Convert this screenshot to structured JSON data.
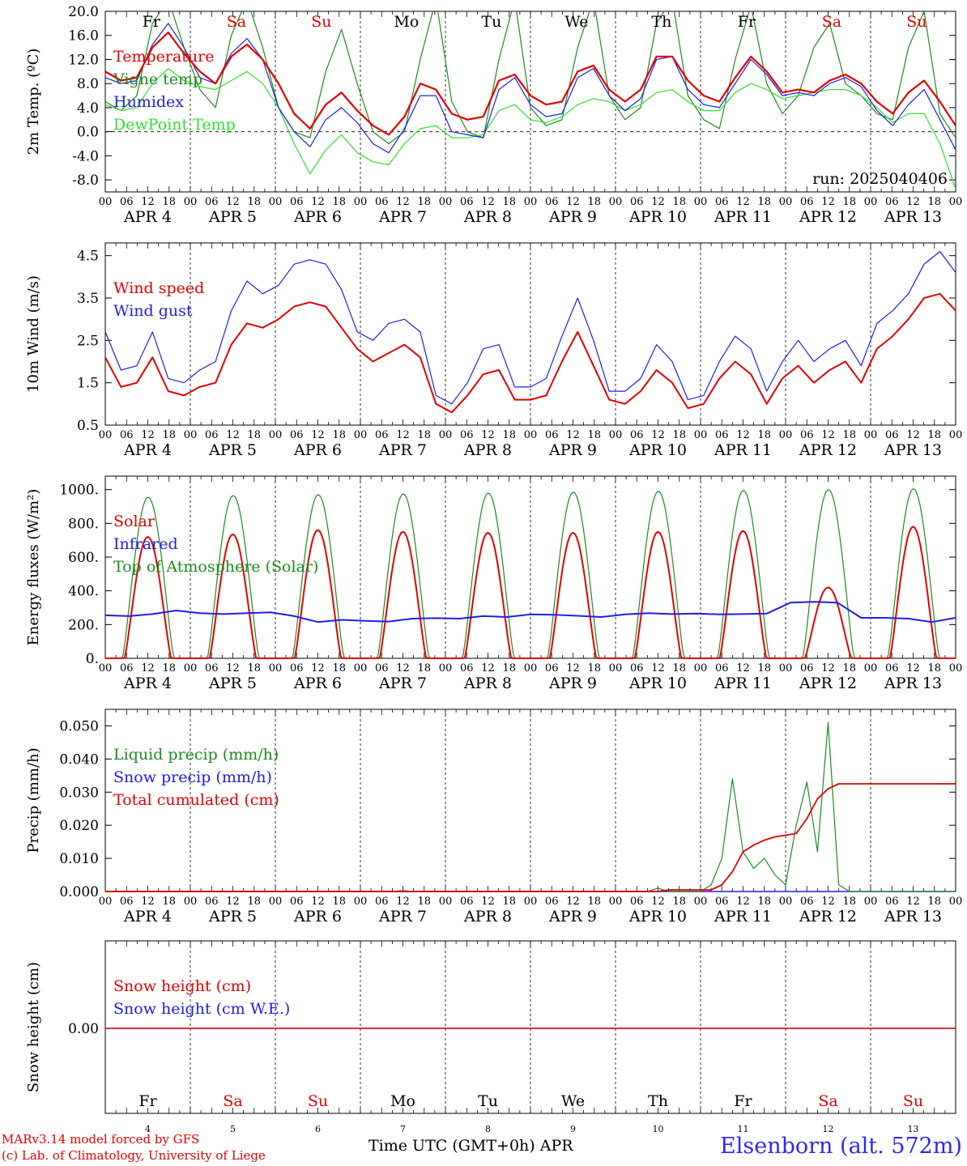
{
  "colors": {
    "red": "#e00000",
    "darkgreen": "#1e8a1e",
    "blue": "#2020e0",
    "lightgreen": "#30e030",
    "black": "#000000"
  },
  "footer": {
    "credit_line1": "MARv3.14 model forced by GFS",
    "credit_line2": "(c) Lab. of Climatology, University of Liege",
    "x_title": "Time UTC (GMT+0h) APR",
    "station": "Elsenborn (alt. 572m)"
  },
  "chart_data": [
    {
      "type": "line",
      "ylabel": "2m Temp. (ºC)",
      "ylim": [
        -10,
        20
      ],
      "yticks": [
        "20.0",
        "16.0",
        "12.0",
        "8.0",
        "4.0",
        "0.0",
        "-4.0",
        "-8.0"
      ],
      "annotation": "run: 2025040406",
      "zero_line": true,
      "day_labels": [
        "Fr",
        "Sa",
        "Su",
        "Mo",
        "Tu",
        "We",
        "Th",
        "Fr",
        "Sa",
        "Su"
      ],
      "legend": [
        "Temperature",
        "Vigne temp",
        "Humidex",
        "DewPoint Temp"
      ],
      "series": [
        {
          "name": "Temperature",
          "color": "red",
          "values": [
            10,
            8.5,
            9,
            14,
            16.5,
            13,
            10,
            8,
            12.5,
            14.5,
            12,
            8,
            3,
            0.5,
            4.5,
            6.5,
            3.5,
            1,
            -0.5,
            2.5,
            8,
            7,
            3,
            2,
            2.5,
            8.5,
            9.5,
            6,
            4.5,
            5,
            10,
            11,
            7,
            5,
            7,
            12.5,
            12.5,
            8.5,
            6,
            5,
            9,
            12.5,
            10,
            6.5,
            7,
            6.5,
            8.5,
            9.5,
            8,
            5,
            3,
            6.5,
            8.5,
            5,
            1
          ]
        },
        {
          "name": "Vigne temp",
          "color": "darkgreen",
          "values": [
            5,
            3.5,
            6,
            18,
            22,
            14,
            7,
            4,
            16,
            22,
            14,
            4,
            0,
            -1,
            10,
            17,
            8,
            0,
            -2,
            0,
            12,
            22,
            5,
            0,
            -1,
            12,
            22,
            4,
            1,
            2,
            14,
            22,
            6,
            2,
            4,
            18,
            22,
            6,
            2,
            0.5,
            12,
            21,
            8,
            3,
            6,
            14,
            18,
            8,
            6,
            3,
            2,
            14,
            20,
            3,
            -1
          ]
        },
        {
          "name": "Humidex",
          "color": "blue",
          "values": [
            9,
            8,
            8.5,
            14.5,
            18,
            14,
            9,
            8,
            13,
            15.5,
            12,
            4,
            0,
            -2.5,
            2,
            4,
            1.5,
            -2,
            -3.5,
            0.5,
            6,
            6,
            0,
            -0.5,
            -1,
            7,
            9,
            4.5,
            2.5,
            3,
            9,
            10.5,
            6,
            3.5,
            5.5,
            12,
            12.5,
            7,
            4.5,
            4,
            8,
            12,
            9.5,
            6,
            6.5,
            6,
            8,
            9,
            7.5,
            3.5,
            1,
            4.5,
            7,
            2,
            -3
          ]
        },
        {
          "name": "DewPoint Temp",
          "color": "lightgreen",
          "values": [
            4.5,
            3.5,
            4,
            8,
            10.5,
            8.5,
            7.5,
            7,
            8.5,
            10,
            8,
            4,
            -2,
            -7,
            -3,
            -0.5,
            -3.5,
            -5,
            -5.5,
            -2,
            0.5,
            1,
            -1,
            -1,
            -0.5,
            3.5,
            4.5,
            2,
            1.5,
            2.5,
            4.5,
            5.5,
            5,
            3.5,
            4.5,
            6.5,
            7,
            5,
            3.5,
            3.5,
            6.5,
            8,
            7,
            5.5,
            6,
            6.5,
            7,
            7,
            6,
            4,
            1.5,
            3,
            3,
            -2,
            -9.5
          ]
        }
      ]
    },
    {
      "type": "line",
      "ylabel": "10m Wind (m/s)",
      "ylim": [
        0.5,
        4.8
      ],
      "yticks": [
        "4.5",
        "3.5",
        "2.5",
        "1.5",
        "0.5"
      ],
      "legend": [
        "Wind speed",
        "Wind gust"
      ],
      "series": [
        {
          "name": "Wind speed",
          "color": "red",
          "values": [
            2.1,
            1.4,
            1.5,
            2.1,
            1.3,
            1.2,
            1.4,
            1.5,
            2.4,
            2.9,
            2.8,
            3.0,
            3.3,
            3.4,
            3.3,
            2.8,
            2.3,
            2.0,
            2.2,
            2.4,
            2.1,
            1.0,
            0.8,
            1.2,
            1.7,
            1.8,
            1.1,
            1.1,
            1.2,
            2.0,
            2.7,
            1.9,
            1.1,
            1.0,
            1.3,
            1.8,
            1.5,
            0.9,
            1.0,
            1.6,
            2.0,
            1.7,
            1.0,
            1.6,
            1.9,
            1.5,
            1.8,
            2.0,
            1.5,
            2.3,
            2.6,
            3.0,
            3.5,
            3.6,
            3.2
          ]
        },
        {
          "name": "Wind gust",
          "color": "blue",
          "values": [
            2.7,
            1.8,
            1.9,
            2.7,
            1.6,
            1.5,
            1.8,
            2.0,
            3.2,
            3.9,
            3.6,
            3.8,
            4.3,
            4.4,
            4.3,
            3.7,
            2.7,
            2.5,
            2.9,
            3.0,
            2.7,
            1.2,
            1.0,
            1.5,
            2.3,
            2.4,
            1.4,
            1.4,
            1.6,
            2.6,
            3.5,
            2.5,
            1.3,
            1.3,
            1.6,
            2.4,
            2.0,
            1.1,
            1.2,
            2.0,
            2.6,
            2.3,
            1.3,
            2.0,
            2.5,
            2.0,
            2.3,
            2.5,
            1.9,
            2.9,
            3.2,
            3.6,
            4.3,
            4.6,
            4.1
          ]
        }
      ]
    },
    {
      "type": "line",
      "ylabel": "Energy fluxes (W/m²)",
      "ylim": [
        0,
        1080
      ],
      "yticks": [
        "1000.",
        "800.",
        "600.",
        "400.",
        "200.",
        "0."
      ],
      "legend": [
        "Solar",
        "Infrared",
        "Top of Atmosphere (Solar)"
      ],
      "solar_peaks": [
        720,
        735,
        760,
        750,
        745,
        745,
        750,
        755,
        420,
        780
      ],
      "toa_peaks": [
        955,
        965,
        970,
        975,
        980,
        985,
        990,
        995,
        1000,
        1005
      ],
      "infrared": [
        255,
        250,
        262,
        283,
        268,
        262,
        268,
        272,
        250,
        215,
        228,
        222,
        218,
        235,
        238,
        235,
        250,
        245,
        260,
        258,
        252,
        245,
        260,
        268,
        262,
        265,
        260,
        262,
        265,
        330,
        335,
        330,
        240,
        240,
        235,
        215,
        240
      ]
    },
    {
      "type": "line",
      "ylabel": "Precip (mm/h)",
      "ylim": [
        0,
        0.055
      ],
      "yticks": [
        "0.050",
        "0.040",
        "0.030",
        "0.020",
        "0.010",
        "0.000"
      ],
      "legend": [
        "Liquid precip (mm/h)",
        "Snow precip (mm/h)",
        "Total cumulated (cm)"
      ],
      "series": [
        {
          "name": "Liquid precip (mm/h)",
          "color": "darkgreen",
          "values": [
            0,
            0,
            0,
            0,
            0,
            0,
            0,
            0,
            0,
            0,
            0,
            0,
            0,
            0,
            0,
            0,
            0,
            0,
            0,
            0,
            0,
            0,
            0,
            0,
            0,
            0,
            0,
            0,
            0.0003,
            0,
            0,
            0,
            0,
            0,
            0,
            0,
            0,
            0,
            0,
            0,
            0,
            0,
            0,
            0,
            0,
            0,
            0,
            0,
            0,
            0,
            0,
            0,
            0.001,
            0,
            0,
            0,
            0,
            0.002,
            0.01,
            0.034,
            0.012,
            0.007,
            0.01,
            0.005,
            0.002,
            0.02,
            0.033,
            0.012,
            0.051,
            0.002,
            0,
            0,
            0,
            0,
            0,
            0,
            0,
            0,
            0,
            0,
            0
          ]
        },
        {
          "name": "Snow precip (mm/h)",
          "color": "blue",
          "values": [
            0,
            0,
            0,
            0,
            0,
            0,
            0,
            0,
            0,
            0,
            0,
            0,
            0,
            0,
            0,
            0,
            0,
            0,
            0,
            0,
            0,
            0,
            0,
            0,
            0,
            0,
            0,
            0,
            0,
            0,
            0,
            0,
            0,
            0,
            0,
            0,
            0,
            0,
            0,
            0,
            0,
            0,
            0,
            0,
            0,
            0,
            0,
            0,
            0,
            0,
            0,
            0,
            0,
            0,
            0,
            0,
            0,
            0,
            0,
            0,
            0,
            0,
            0,
            0,
            0,
            0,
            0,
            0,
            0,
            0,
            0,
            0,
            0,
            0,
            0,
            0,
            0,
            0,
            0,
            0,
            0
          ]
        },
        {
          "name": "Total cumulated (cm)",
          "color": "red",
          "values": [
            0,
            0,
            0,
            0,
            0,
            0,
            0,
            0,
            0,
            0,
            0,
            0,
            0,
            0,
            0,
            0,
            0,
            0,
            0,
            0,
            0,
            0,
            0,
            0,
            0,
            0,
            0,
            0,
            0,
            0,
            0,
            0,
            0,
            0,
            0,
            0,
            0,
            0,
            0,
            0,
            0,
            0,
            0,
            0,
            0,
            0,
            0,
            0,
            0,
            0,
            0,
            0,
            0,
            0.0005,
            0.0005,
            0.0005,
            0.0005,
            0.0005,
            0.002,
            0.006,
            0.012,
            0.014,
            0.0155,
            0.0165,
            0.017,
            0.0175,
            0.022,
            0.028,
            0.031,
            0.0325,
            0.0325,
            0.0325,
            0.0325,
            0.0325,
            0.0325,
            0.0325,
            0.0325,
            0.0325,
            0.0325,
            0.0325,
            0.0325
          ]
        }
      ]
    },
    {
      "type": "line",
      "ylabel": "Snow height (cm)",
      "yticks": [
        "0.00"
      ],
      "legend": [
        "Snow height (cm)",
        "Snow height (cm W.E.)"
      ],
      "series": [
        {
          "name": "Snow height (cm)",
          "color": "red",
          "values": [
            0,
            0
          ]
        },
        {
          "name": "Snow height (cm W.E.)",
          "color": "blue",
          "values": [
            0,
            0
          ]
        }
      ],
      "weekday_labels": [
        "Fr",
        "Sa",
        "Su",
        "Mo",
        "Tu",
        "We",
        "Th",
        "Fr",
        "Sa",
        "Su"
      ],
      "weekday_colors": [
        "black",
        "red",
        "red",
        "black",
        "black",
        "black",
        "black",
        "black",
        "red",
        "red"
      ],
      "day_numbers": [
        "4",
        "5",
        "6",
        "7",
        "8",
        "9",
        "10",
        "11",
        "12",
        "13"
      ]
    }
  ],
  "shared_axis": {
    "hour_labels": [
      "00",
      "06",
      "12",
      "18"
    ],
    "end_label": "00",
    "date_labels": [
      "APR  4",
      "APR  5",
      "APR  6",
      "APR  7",
      "APR  8",
      "APR  9",
      "APR 10",
      "APR 11",
      "APR 12",
      "APR 13"
    ]
  }
}
